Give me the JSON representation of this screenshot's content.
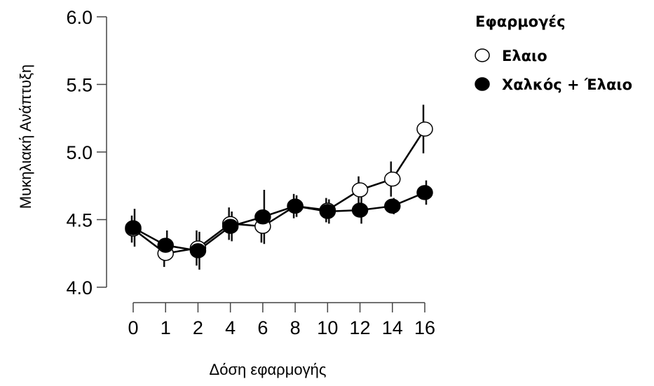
{
  "chart_data": {
    "type": "line",
    "xlabel": "Δόση εφαρμογής",
    "ylabel": "Μυκηλιακή Ανάπτυξη",
    "categories": [
      "0",
      "1",
      "2",
      "4",
      "6",
      "8",
      "10",
      "12",
      "14",
      "16"
    ],
    "ylim": [
      4.0,
      6.0
    ],
    "yticks": [
      "4.0",
      "4.5",
      "5.0",
      "5.5",
      "6.0"
    ],
    "grid": false,
    "legend": {
      "title": "Εφαρμογές",
      "placement": "top-right"
    },
    "series": [
      {
        "name": "Ελαιο",
        "marker": "open-circle",
        "values": [
          4.43,
          4.25,
          4.29,
          4.47,
          4.45,
          4.6,
          4.57,
          4.72,
          4.8,
          5.17
        ],
        "error": [
          0.1,
          0.1,
          0.13,
          0.12,
          0.12,
          0.09,
          0.09,
          0.1,
          0.13,
          0.18
        ]
      },
      {
        "name": "Χαλκός + Έλαιο",
        "marker": "filled-circle",
        "values": [
          4.44,
          4.31,
          4.27,
          4.45,
          4.52,
          4.6,
          4.56,
          4.57,
          4.6,
          4.7
        ],
        "error": [
          0.14,
          0.11,
          0.14,
          0.11,
          0.2,
          0.08,
          0.09,
          0.1,
          0.06,
          0.09
        ]
      }
    ]
  }
}
